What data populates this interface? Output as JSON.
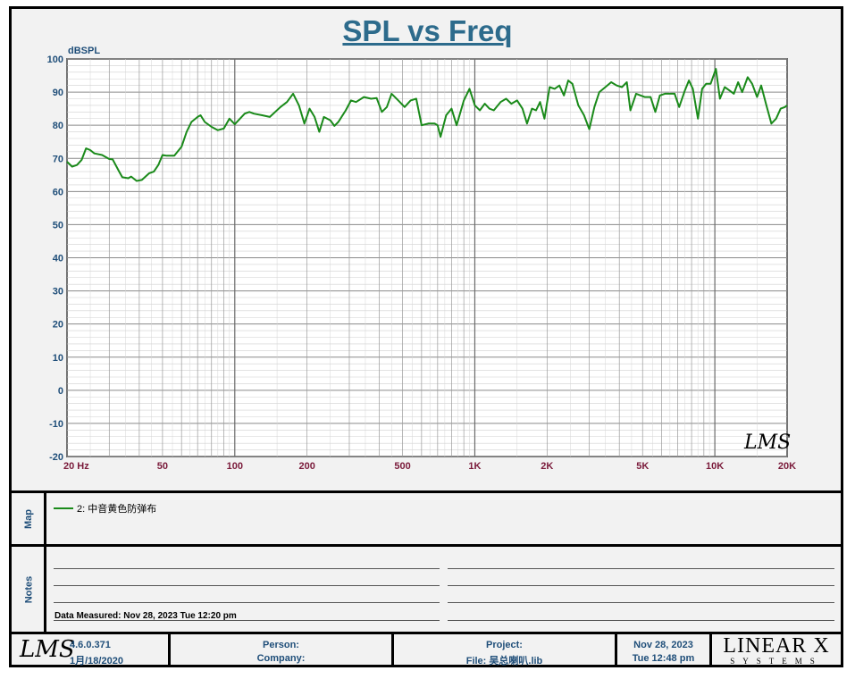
{
  "chart_data": {
    "type": "line",
    "title": "SPL vs Freq",
    "ylabel": "dBSPL",
    "xscale": "log",
    "xlim": [
      20,
      20000
    ],
    "ylim": [
      -20,
      100
    ],
    "grid": true,
    "yticks": [
      100,
      90,
      80,
      70,
      60,
      50,
      40,
      30,
      20,
      10,
      0,
      -10,
      -20
    ],
    "xticks": [
      {
        "value": 20,
        "label": "20  Hz"
      },
      {
        "value": 50,
        "label": "50"
      },
      {
        "value": 100,
        "label": "100"
      },
      {
        "value": 200,
        "label": "200"
      },
      {
        "value": 500,
        "label": "500"
      },
      {
        "value": 1000,
        "label": "1K"
      },
      {
        "value": 2000,
        "label": "2K"
      },
      {
        "value": 5000,
        "label": "5K"
      },
      {
        "value": 10000,
        "label": "10K"
      },
      {
        "value": 20000,
        "label": "20K"
      }
    ],
    "series": [
      {
        "name": "2: 中音黄色防弹布",
        "color": "#1a8a1a",
        "points": [
          [
            20,
            69
          ],
          [
            21,
            67.5
          ],
          [
            22,
            68
          ],
          [
            23,
            69.5
          ],
          [
            24,
            73
          ],
          [
            25,
            72.5
          ],
          [
            26,
            71.5
          ],
          [
            28,
            71
          ],
          [
            30,
            69.8
          ],
          [
            31,
            69.7
          ],
          [
            33,
            66
          ],
          [
            34,
            64.3
          ],
          [
            36,
            64
          ],
          [
            37,
            64.5
          ],
          [
            39,
            63.2
          ],
          [
            41,
            63.5
          ],
          [
            44,
            65.5
          ],
          [
            46,
            66
          ],
          [
            48,
            68
          ],
          [
            50,
            71
          ],
          [
            52,
            70.8
          ],
          [
            56,
            70.8
          ],
          [
            60,
            73.5
          ],
          [
            63,
            78
          ],
          [
            66,
            81
          ],
          [
            70,
            82.5
          ],
          [
            72,
            83
          ],
          [
            75,
            81
          ],
          [
            80,
            79.5
          ],
          [
            85,
            78.5
          ],
          [
            90,
            79
          ],
          [
            95,
            82
          ],
          [
            100,
            80.3
          ],
          [
            110,
            83.5
          ],
          [
            115,
            84
          ],
          [
            120,
            83.5
          ],
          [
            130,
            83
          ],
          [
            140,
            82.5
          ],
          [
            155,
            85.5
          ],
          [
            165,
            87
          ],
          [
            175,
            89.5
          ],
          [
            185,
            86
          ],
          [
            195,
            80.5
          ],
          [
            205,
            85
          ],
          [
            215,
            82.5
          ],
          [
            225,
            78
          ],
          [
            235,
            82.5
          ],
          [
            250,
            81.5
          ],
          [
            260,
            79.8
          ],
          [
            270,
            81
          ],
          [
            290,
            84.5
          ],
          [
            305,
            87.5
          ],
          [
            320,
            87
          ],
          [
            345,
            88.5
          ],
          [
            370,
            88
          ],
          [
            390,
            88.2
          ],
          [
            410,
            84
          ],
          [
            430,
            85.5
          ],
          [
            450,
            89.5
          ],
          [
            480,
            87.5
          ],
          [
            510,
            85.5
          ],
          [
            540,
            87.5
          ],
          [
            570,
            88
          ],
          [
            600,
            80
          ],
          [
            640,
            80.5
          ],
          [
            680,
            80.5
          ],
          [
            700,
            80
          ],
          [
            720,
            76.5
          ],
          [
            760,
            83
          ],
          [
            800,
            85
          ],
          [
            840,
            80
          ],
          [
            900,
            87.5
          ],
          [
            950,
            91
          ],
          [
            1000,
            86
          ],
          [
            1050,
            84.5
          ],
          [
            1100,
            86.5
          ],
          [
            1150,
            85
          ],
          [
            1200,
            84.5
          ],
          [
            1280,
            87
          ],
          [
            1350,
            88
          ],
          [
            1420,
            86.5
          ],
          [
            1500,
            87.5
          ],
          [
            1580,
            85
          ],
          [
            1650,
            80.5
          ],
          [
            1730,
            85
          ],
          [
            1800,
            84.5
          ],
          [
            1870,
            87
          ],
          [
            1950,
            82
          ],
          [
            2050,
            91.5
          ],
          [
            2150,
            91
          ],
          [
            2250,
            92
          ],
          [
            2350,
            89
          ],
          [
            2450,
            93.5
          ],
          [
            2550,
            92.5
          ],
          [
            2700,
            86
          ],
          [
            2850,
            83
          ],
          [
            3000,
            78.8
          ],
          [
            3150,
            85.5
          ],
          [
            3300,
            90
          ],
          [
            3500,
            91.5
          ],
          [
            3700,
            93
          ],
          [
            3900,
            92
          ],
          [
            4100,
            91.5
          ],
          [
            4300,
            93
          ],
          [
            4450,
            84.5
          ],
          [
            4700,
            89.5
          ],
          [
            4900,
            89
          ],
          [
            5100,
            88.5
          ],
          [
            5400,
            88.5
          ],
          [
            5650,
            84
          ],
          [
            5900,
            89
          ],
          [
            6200,
            89.5
          ],
          [
            6500,
            89.5
          ],
          [
            6800,
            89.5
          ],
          [
            7100,
            85.5
          ],
          [
            7500,
            90.5
          ],
          [
            7800,
            93.5
          ],
          [
            8100,
            91
          ],
          [
            8500,
            82
          ],
          [
            8850,
            91
          ],
          [
            9200,
            92.5
          ],
          [
            9600,
            92.5
          ],
          [
            10100,
            97
          ],
          [
            10500,
            88
          ],
          [
            11000,
            91.5
          ],
          [
            11500,
            90.5
          ],
          [
            12000,
            89.5
          ],
          [
            12500,
            93
          ],
          [
            13000,
            90
          ],
          [
            13700,
            94.5
          ],
          [
            14300,
            92.5
          ],
          [
            15000,
            88.5
          ],
          [
            15600,
            92
          ],
          [
            16400,
            86
          ],
          [
            17200,
            80.5
          ],
          [
            18000,
            82
          ],
          [
            18800,
            85
          ],
          [
            19600,
            85.5
          ],
          [
            20000,
            86
          ]
        ]
      }
    ]
  },
  "map": {
    "label": "Map",
    "legend_entry": "2: 中音黄色防弹布"
  },
  "notes": {
    "label": "Notes",
    "data_measured": "Data Measured: Nov 28, 2023  Tue 12:20 pm"
  },
  "footer": {
    "version": "4.6.0.371",
    "version_date": "1月/18/2020",
    "person_label": "Person:",
    "company_label": "Company:",
    "project_label": "Project:",
    "file_label": "File: 吴总喇叭.lib",
    "print_date": "Nov 28, 2023",
    "print_time": "Tue 12:48 pm",
    "lms_logo": "LMS",
    "brand": "LINEAR X",
    "brand_sub": "SYSTEMS"
  }
}
